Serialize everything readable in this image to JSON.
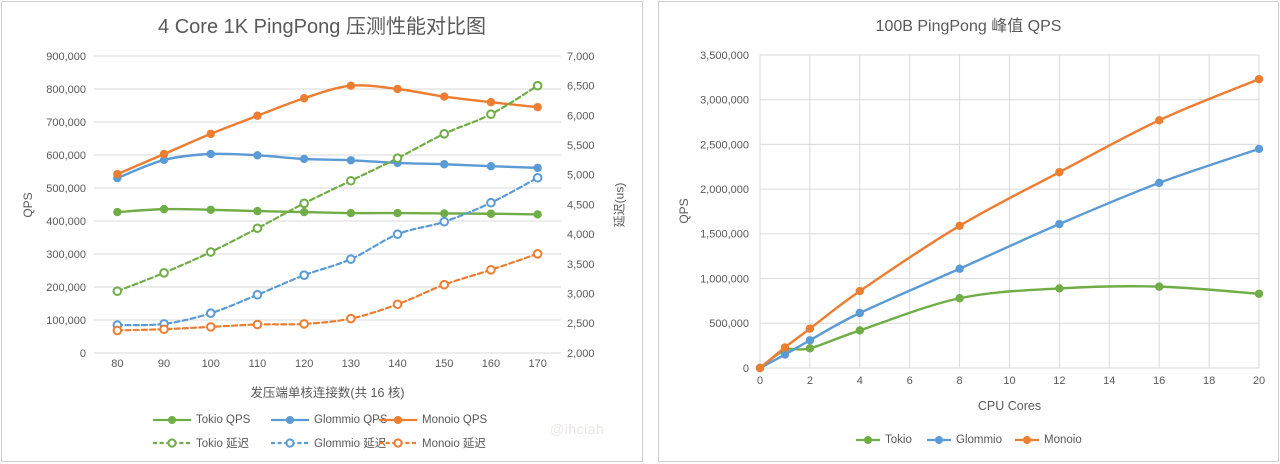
{
  "watermark": "@ihciah",
  "colors": {
    "tokio": "#70AD47",
    "glommio": "#5B9BD5",
    "monoio": "#ED7D31",
    "grid": "#D9D9D9",
    "text": "#595959"
  },
  "chart_data": [
    {
      "type": "line",
      "title": "4 Core 1K PingPong 压测性能对比图",
      "xlabel": "发压端单核连接数(共 16 核)",
      "ylabel_left": "QPS",
      "ylabel_right": "延迟(us)",
      "x": [
        80,
        90,
        100,
        110,
        120,
        130,
        140,
        150,
        160,
        170
      ],
      "y_left_axis": {
        "min": 0,
        "max": 900000,
        "step": 100000
      },
      "y_right_axis": {
        "min": 2000,
        "max": 7000,
        "step": 500
      },
      "grid": "horizontal-only",
      "legend_position": "bottom",
      "series": [
        {
          "name": "Tokio QPS",
          "axis": "left",
          "line": "solid",
          "marker": "filled",
          "color_key": "tokio",
          "values": [
            427000,
            436000,
            434000,
            430000,
            427000,
            424000,
            424000,
            423000,
            422000,
            420000
          ]
        },
        {
          "name": "Glommio QPS",
          "axis": "left",
          "line": "solid",
          "marker": "filled",
          "color_key": "glommio",
          "values": [
            530000,
            585000,
            603000,
            599000,
            588000,
            584000,
            576000,
            572000,
            566000,
            561000
          ]
        },
        {
          "name": "Monoio QPS",
          "axis": "left",
          "line": "solid",
          "marker": "filled",
          "color_key": "monoio",
          "values": [
            542000,
            603000,
            664000,
            719000,
            772000,
            810000,
            800000,
            777000,
            760000,
            745000
          ]
        },
        {
          "name": "Tokio 延迟",
          "axis": "right",
          "line": "dashed",
          "marker": "open",
          "color_key": "tokio",
          "values": [
            3040,
            3350,
            3700,
            4100,
            4520,
            4900,
            5280,
            5690,
            6020,
            6500
          ]
        },
        {
          "name": "Glommio 延迟",
          "axis": "right",
          "line": "dashed",
          "marker": "open",
          "color_key": "glommio",
          "values": [
            2470,
            2490,
            2670,
            2980,
            3310,
            3580,
            4000,
            4210,
            4530,
            4950
          ]
        },
        {
          "name": "Monoio 延迟",
          "axis": "right",
          "line": "dashed",
          "marker": "open",
          "color_key": "monoio",
          "values": [
            2380,
            2400,
            2440,
            2480,
            2490,
            2580,
            2820,
            3150,
            3400,
            3670
          ]
        }
      ]
    },
    {
      "type": "line",
      "title": "100B PingPong 峰值 QPS",
      "xlabel": "CPU Cores",
      "ylabel": "QPS",
      "x": [
        0,
        1,
        2,
        4,
        8,
        12,
        16,
        20
      ],
      "x_axis": {
        "min": 0,
        "max": 20,
        "step": 2
      },
      "y_axis": {
        "min": 0,
        "max": 3500000,
        "step": 500000
      },
      "grid": "full",
      "legend_position": "bottom",
      "series": [
        {
          "name": "Tokio",
          "line": "solid",
          "marker": "filled",
          "color_key": "tokio",
          "values": [
            0,
            200000,
            220000,
            420000,
            780000,
            890000,
            910000,
            830000
          ]
        },
        {
          "name": "Glommio",
          "line": "solid",
          "marker": "filled",
          "color_key": "glommio",
          "values": [
            0,
            150000,
            310000,
            615000,
            1110000,
            1610000,
            2070000,
            2450000
          ]
        },
        {
          "name": "Monoio",
          "line": "solid",
          "marker": "filled",
          "color_key": "monoio",
          "values": [
            0,
            230000,
            440000,
            860000,
            1590000,
            2190000,
            2770000,
            3230000
          ]
        }
      ]
    }
  ]
}
